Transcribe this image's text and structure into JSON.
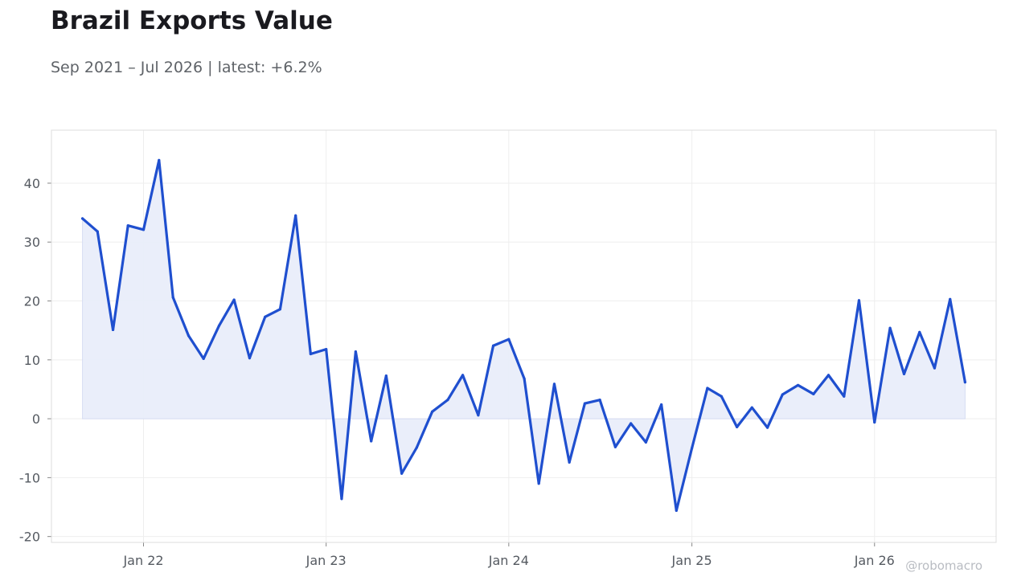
{
  "title": "Brazil Exports Value",
  "subtitle": "Sep 2021 – Jul 2026 | latest: +6.2%",
  "watermark": "@robomacro",
  "colors": {
    "line": "#1f4fcf",
    "fill": "#e9eefa",
    "grid": "#eeeeee",
    "frame": "#dddddd"
  },
  "chart_data": {
    "type": "area",
    "title": "Brazil Exports Value",
    "subtitle": "Sep 2021 – Jul 2026 | latest: +6.2%",
    "xlabel": "",
    "ylabel": "",
    "grid": true,
    "legend": "none",
    "xlim": [
      "2021-07-01",
      "2026-09-01"
    ],
    "ylim": [
      -21,
      49
    ],
    "x_ticks": [
      {
        "date": "2022-01-01",
        "label": "Jan 22"
      },
      {
        "date": "2023-01-01",
        "label": "Jan 23"
      },
      {
        "date": "2024-01-01",
        "label": "Jan 24"
      },
      {
        "date": "2025-01-01",
        "label": "Jan 25"
      },
      {
        "date": "2026-01-01",
        "label": "Jan 26"
      }
    ],
    "y_ticks": [
      -20,
      -10,
      0,
      10,
      20,
      30,
      40
    ],
    "series": [
      {
        "x": [
          "2021-09",
          "2021-10",
          "2021-11",
          "2021-12",
          "2022-01",
          "2022-02",
          "2022-03",
          "2022-04",
          "2022-05",
          "2022-06",
          "2022-07",
          "2022-08",
          "2022-09",
          "2022-10",
          "2022-11",
          "2022-12",
          "2023-01",
          "2023-02",
          "2023-03",
          "2023-04",
          "2023-05",
          "2023-06",
          "2023-07",
          "2023-08",
          "2023-09",
          "2023-10",
          "2023-11",
          "2023-12",
          "2024-01",
          "2024-02",
          "2024-03",
          "2024-04",
          "2024-05",
          "2024-06",
          "2024-07",
          "2024-08",
          "2024-09",
          "2024-10",
          "2024-11",
          "2024-12",
          "2025-01",
          "2025-02",
          "2025-03",
          "2025-04",
          "2025-05",
          "2025-06",
          "2025-07",
          "2025-08",
          "2025-09",
          "2025-10",
          "2025-11",
          "2025-12",
          "2026-01",
          "2026-02",
          "2026-03",
          "2026-04",
          "2026-05",
          "2026-06",
          "2026-07"
        ],
        "values": [
          34.0,
          31.8,
          15.1,
          32.8,
          32.1,
          43.9,
          20.6,
          14.1,
          10.2,
          15.8,
          20.2,
          10.3,
          17.3,
          18.6,
          34.5,
          11.0,
          11.8,
          -13.6,
          11.4,
          -3.8,
          7.3,
          -9.3,
          -4.9,
          1.2,
          3.2,
          7.4,
          0.6,
          12.4,
          13.5,
          6.8,
          -11.0,
          5.9,
          -7.4,
          2.6,
          3.2,
          -4.8,
          -0.8,
          -4.0,
          2.4,
          -15.6,
          -5.0,
          5.2,
          3.8,
          -1.4,
          1.9,
          -1.5,
          4.1,
          5.7,
          4.2,
          7.4,
          3.8,
          20.1,
          -0.6,
          15.4,
          7.6,
          14.7,
          8.6,
          20.3,
          6.2
        ]
      }
    ]
  }
}
